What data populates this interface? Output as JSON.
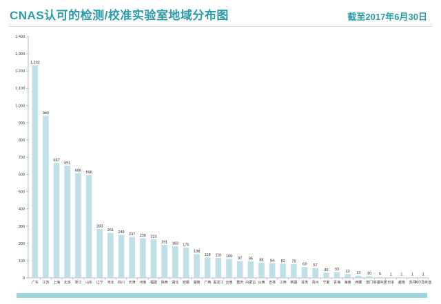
{
  "header": {
    "title": "CNAS认可的检测/校准实验室地域分布图",
    "date": "截至2017年6月30日"
  },
  "colors": {
    "accent": "#2b9ba8",
    "bar": "#bfe0e6",
    "band": "#9fd3db"
  },
  "chart_data": {
    "type": "bar",
    "title": "CNAS认可的检测/校准实验室地域分布图",
    "xlabel": "",
    "ylabel": "",
    "ylim": [
      0,
      1400
    ],
    "yticks": [
      0,
      100,
      200,
      300,
      400,
      500,
      600,
      700,
      800,
      900,
      1000,
      1100,
      1200,
      1300,
      1400
    ],
    "yticklabels": [
      "0",
      "100",
      "200",
      "300",
      "400",
      "500",
      "600",
      "700",
      "800",
      "900",
      "1,000",
      "1,100",
      "1,200",
      "1,300",
      "1,400"
    ],
    "grid": false,
    "categories": [
      "广东",
      "江苏",
      "上海",
      "北京",
      "浙江",
      "山东",
      "辽宁",
      "河北",
      "四川",
      "天津",
      "河南",
      "福建",
      "陕西",
      "湖北",
      "安徽",
      "湖南",
      "广西",
      "黑龙江",
      "云南",
      "重庆",
      "内蒙古",
      "山西",
      "吉林",
      "江西",
      "新疆",
      "甘肃",
      "贵州",
      "宁夏",
      "青海",
      "海南",
      "西藏",
      "澳门",
      "新疆兵团",
      "日本",
      "越南",
      "苏丹",
      "阿尔及利亚"
    ],
    "values": [
      1232,
      940,
      667,
      651,
      606,
      596,
      283,
      261,
      249,
      237,
      230,
      223,
      191,
      183,
      175,
      138,
      118,
      116,
      109,
      97,
      95,
      88,
      84,
      82,
      79,
      63,
      57,
      30,
      33,
      22,
      13,
      10,
      5,
      1,
      1,
      1,
      1
    ],
    "data_labels": [
      "1,232",
      "940",
      "667",
      "651",
      "606",
      "596",
      "283",
      "261",
      "249",
      "237",
      "230",
      "223",
      "191",
      "183",
      "175",
      "138",
      "118",
      "116",
      "109",
      "97",
      "95",
      "88",
      "84",
      "82",
      "79",
      "63",
      "57",
      "30",
      "33",
      "22",
      "13",
      "10",
      "5",
      "1",
      "1",
      "1",
      "1"
    ]
  }
}
